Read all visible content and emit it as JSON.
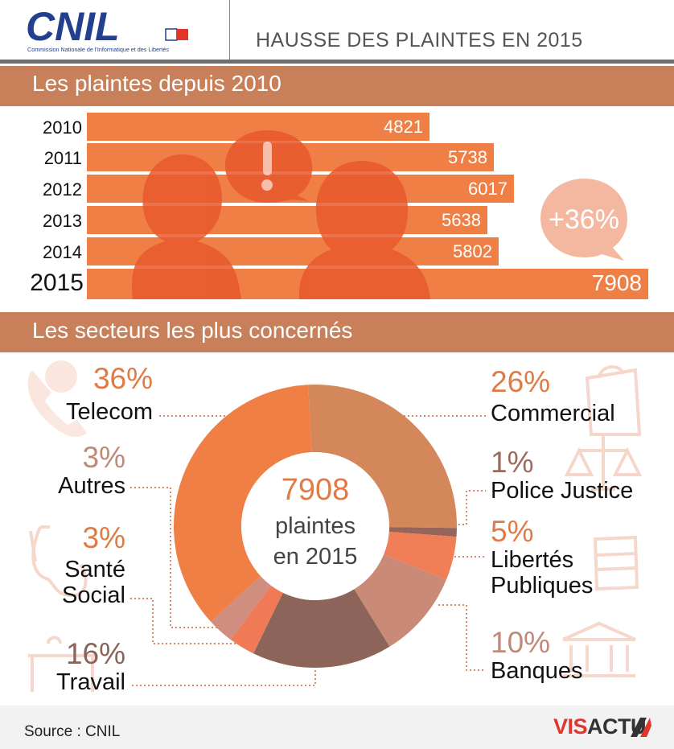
{
  "header": {
    "title": "HAUSSE DES PLAINTES EN 2015",
    "logo_text": "CNIL",
    "logo_subtitle": "Commission Nationale de l'Informatique et des Libertés"
  },
  "section1": {
    "title": "Les plaintes depuis 2010"
  },
  "section2": {
    "title": "Les secteurs les plus concernés"
  },
  "increase_badge": "+36%",
  "donut_center": {
    "value": "7908",
    "line1": "plaintes",
    "line2": "en 2015"
  },
  "footer": {
    "source": "Source : CNIL",
    "brand_a": "VIS",
    "brand_b": "ACTU"
  },
  "colors": {
    "bar": "#ef7f45",
    "band": "#c8805a",
    "badge": "#f4b8a0"
  },
  "chart_data": [
    {
      "type": "bar",
      "orientation": "horizontal",
      "title": "Les plaintes depuis 2010",
      "categories": [
        "2010",
        "2011",
        "2012",
        "2013",
        "2014",
        "2015"
      ],
      "values": [
        4821,
        5738,
        6017,
        5638,
        5802,
        7908
      ],
      "labels": [
        "4821",
        "5738",
        "6017",
        "5638",
        "5802",
        "7908"
      ],
      "xlim": [
        0,
        7908
      ]
    },
    {
      "type": "pie",
      "subtype": "donut",
      "title": "Les secteurs les plus concernés",
      "slices": [
        {
          "name": "Commercial",
          "lines": [
            "Commercial"
          ],
          "value": 26,
          "label": "26%",
          "color": "#d4875a",
          "label_color": "#e07b45"
        },
        {
          "name": "Police Justice",
          "lines": [
            "Police Justice"
          ],
          "value": 1,
          "label": "1%",
          "color": "#96655a",
          "label_color": "#9a6a5c"
        },
        {
          "name": "Libertés Publiques",
          "lines": [
            "Libertés",
            "Publiques"
          ],
          "value": 5,
          "label": "5%",
          "color": "#f07e56",
          "label_color": "#e07b45"
        },
        {
          "name": "Banques",
          "lines": [
            "Banques"
          ],
          "value": 10,
          "label": "10%",
          "color": "#c98a78",
          "label_color": "#c08a78"
        },
        {
          "name": "Travail",
          "lines": [
            "Travail"
          ],
          "value": 16,
          "label": "16%",
          "color": "#8c645a",
          "label_color": "#8a6458"
        },
        {
          "name": "Santé Social",
          "lines": [
            "Santé",
            "Social"
          ],
          "value": 3,
          "label": "3%",
          "color": "#f07a56",
          "label_color": "#e07b45"
        },
        {
          "name": "Autres",
          "lines": [
            "Autres"
          ],
          "value": 3,
          "label": "3%",
          "color": "#cf8e80",
          "label_color": "#c08a78"
        },
        {
          "name": "Telecom",
          "lines": [
            "Telecom"
          ],
          "value": 36,
          "label": "36%",
          "color": "#ef7f45",
          "label_color": "#e07b45"
        }
      ]
    }
  ]
}
